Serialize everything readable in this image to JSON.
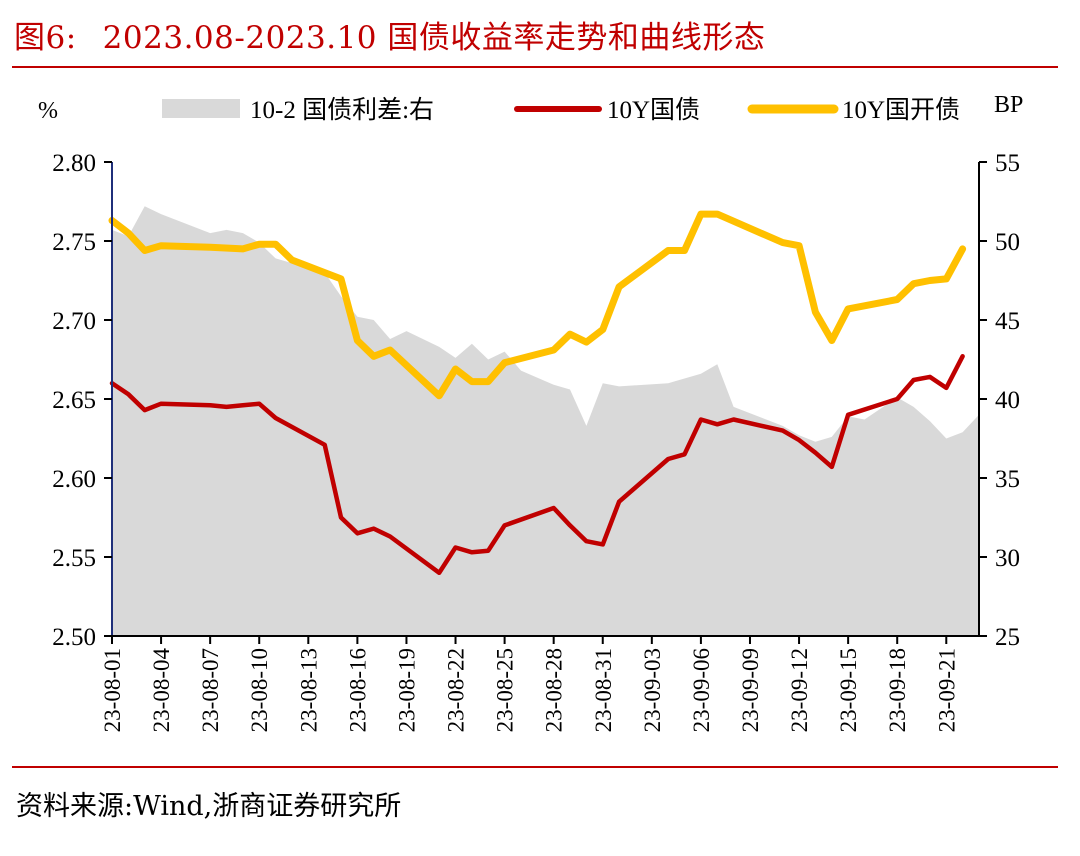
{
  "figure": {
    "label": "图6:",
    "title": "2023.08-2023.10 国债收益率走势和曲线形态",
    "source": "资料来源:Wind,浙商证券研究所"
  },
  "chart_data": {
    "type": "line",
    "left_axis": {
      "unit": "%",
      "ylim": [
        2.5,
        2.8
      ],
      "ticks": [
        "2.50",
        "2.55",
        "2.60",
        "2.65",
        "2.70",
        "2.75",
        "2.80"
      ]
    },
    "right_axis": {
      "unit": "BP",
      "ylim": [
        25,
        55
      ],
      "ticks": [
        "25",
        "30",
        "35",
        "40",
        "45",
        "50",
        "55"
      ]
    },
    "x_tick_labels": [
      "23-08-01",
      "23-08-04",
      "23-08-07",
      "23-08-10",
      "23-08-13",
      "23-08-16",
      "23-08-19",
      "23-08-22",
      "23-08-25",
      "23-08-28",
      "23-08-31",
      "23-09-03",
      "23-09-06",
      "23-09-09",
      "23-09-12",
      "23-09-15",
      "23-09-18",
      "23-09-21"
    ],
    "x_range": [
      "2023-08-01",
      "2023-09-23"
    ],
    "grid": false,
    "legend_position": "top",
    "series": [
      {
        "name": "10-2 国债利差:右",
        "kind": "area",
        "axis": "right",
        "color": "#d9d9d9",
        "points": [
          [
            "2023-08-01",
            50.7
          ],
          [
            "2023-08-02",
            50.3
          ],
          [
            "2023-08-03",
            52.2
          ],
          [
            "2023-08-04",
            51.7
          ],
          [
            "2023-08-07",
            50.5
          ],
          [
            "2023-08-08",
            50.7
          ],
          [
            "2023-08-09",
            50.5
          ],
          [
            "2023-08-10",
            49.9
          ],
          [
            "2023-08-11",
            48.9
          ],
          [
            "2023-08-14",
            48.0
          ],
          [
            "2023-08-15",
            46.5
          ],
          [
            "2023-08-16",
            45.2
          ],
          [
            "2023-08-17",
            45.0
          ],
          [
            "2023-08-18",
            43.8
          ],
          [
            "2023-08-19",
            44.3
          ],
          [
            "2023-08-21",
            43.3
          ],
          [
            "2023-08-22",
            42.6
          ],
          [
            "2023-08-23",
            43.5
          ],
          [
            "2023-08-24",
            42.5
          ],
          [
            "2023-08-25",
            43.0
          ],
          [
            "2023-08-26",
            41.8
          ],
          [
            "2023-08-28",
            40.9
          ],
          [
            "2023-08-29",
            40.6
          ],
          [
            "2023-08-30",
            38.3
          ],
          [
            "2023-08-31",
            41.0
          ],
          [
            "2023-09-01",
            40.8
          ],
          [
            "2023-09-04",
            41.0
          ],
          [
            "2023-09-05",
            41.3
          ],
          [
            "2023-09-06",
            41.6
          ],
          [
            "2023-09-07",
            42.2
          ],
          [
            "2023-09-08",
            39.5
          ],
          [
            "2023-09-11",
            38.3
          ],
          [
            "2023-09-12",
            37.7
          ],
          [
            "2023-09-13",
            37.3
          ],
          [
            "2023-09-14",
            37.6
          ],
          [
            "2023-09-15",
            38.9
          ],
          [
            "2023-09-16",
            38.7
          ],
          [
            "2023-09-18",
            40.1
          ],
          [
            "2023-09-19",
            39.5
          ],
          [
            "2023-09-20",
            38.6
          ],
          [
            "2023-09-21",
            37.5
          ],
          [
            "2023-09-22",
            37.9
          ],
          [
            "2023-09-23",
            39.0
          ]
        ]
      },
      {
        "name": "10Y国债",
        "kind": "line",
        "axis": "left",
        "color": "#c00000",
        "points": [
          [
            "2023-08-01",
            2.66
          ],
          [
            "2023-08-02",
            2.653
          ],
          [
            "2023-08-03",
            2.643
          ],
          [
            "2023-08-04",
            2.647
          ],
          [
            "2023-08-07",
            2.646
          ],
          [
            "2023-08-08",
            2.645
          ],
          [
            "2023-08-09",
            2.646
          ],
          [
            "2023-08-10",
            2.647
          ],
          [
            "2023-08-11",
            2.638
          ],
          [
            "2023-08-14",
            2.621
          ],
          [
            "2023-08-15",
            2.575
          ],
          [
            "2023-08-16",
            2.565
          ],
          [
            "2023-08-17",
            2.568
          ],
          [
            "2023-08-18",
            2.563
          ],
          [
            "2023-08-21",
            2.54
          ],
          [
            "2023-08-22",
            2.556
          ],
          [
            "2023-08-23",
            2.553
          ],
          [
            "2023-08-24",
            2.554
          ],
          [
            "2023-08-25",
            2.57
          ],
          [
            "2023-08-28",
            2.581
          ],
          [
            "2023-08-29",
            2.57
          ],
          [
            "2023-08-30",
            2.56
          ],
          [
            "2023-08-31",
            2.558
          ],
          [
            "2023-09-01",
            2.585
          ],
          [
            "2023-09-04",
            2.612
          ],
          [
            "2023-09-05",
            2.615
          ],
          [
            "2023-09-06",
            2.637
          ],
          [
            "2023-09-07",
            2.634
          ],
          [
            "2023-09-08",
            2.637
          ],
          [
            "2023-09-11",
            2.63
          ],
          [
            "2023-09-12",
            2.624
          ],
          [
            "2023-09-13",
            2.616
          ],
          [
            "2023-09-14",
            2.607
          ],
          [
            "2023-09-15",
            2.64
          ],
          [
            "2023-09-18",
            2.65
          ],
          [
            "2023-09-19",
            2.662
          ],
          [
            "2023-09-20",
            2.664
          ],
          [
            "2023-09-21",
            2.657
          ],
          [
            "2023-09-22",
            2.677
          ]
        ]
      },
      {
        "name": "10Y国开债",
        "kind": "line",
        "axis": "left",
        "color": "#ffc000",
        "points": [
          [
            "2023-08-01",
            2.763
          ],
          [
            "2023-08-02",
            2.755
          ],
          [
            "2023-08-03",
            2.744
          ],
          [
            "2023-08-04",
            2.747
          ],
          [
            "2023-08-07",
            2.746
          ],
          [
            "2023-08-09",
            2.745
          ],
          [
            "2023-08-10",
            2.748
          ],
          [
            "2023-08-11",
            2.748
          ],
          [
            "2023-08-12",
            2.738
          ],
          [
            "2023-08-14",
            2.73
          ],
          [
            "2023-08-15",
            2.726
          ],
          [
            "2023-08-16",
            2.687
          ],
          [
            "2023-08-17",
            2.677
          ],
          [
            "2023-08-18",
            2.681
          ],
          [
            "2023-08-21",
            2.652
          ],
          [
            "2023-08-22",
            2.669
          ],
          [
            "2023-08-23",
            2.661
          ],
          [
            "2023-08-24",
            2.661
          ],
          [
            "2023-08-25",
            2.673
          ],
          [
            "2023-08-28",
            2.681
          ],
          [
            "2023-08-29",
            2.691
          ],
          [
            "2023-08-30",
            2.686
          ],
          [
            "2023-08-31",
            2.694
          ],
          [
            "2023-09-01",
            2.721
          ],
          [
            "2023-09-04",
            2.744
          ],
          [
            "2023-09-05",
            2.744
          ],
          [
            "2023-09-06",
            2.767
          ],
          [
            "2023-09-07",
            2.767
          ],
          [
            "2023-09-11",
            2.749
          ],
          [
            "2023-09-12",
            2.747
          ],
          [
            "2023-09-13",
            2.705
          ],
          [
            "2023-09-14",
            2.687
          ],
          [
            "2023-09-15",
            2.707
          ],
          [
            "2023-09-18",
            2.713
          ],
          [
            "2023-09-19",
            2.723
          ],
          [
            "2023-09-20",
            2.725
          ],
          [
            "2023-09-21",
            2.726
          ],
          [
            "2023-09-22",
            2.745
          ]
        ]
      }
    ]
  }
}
